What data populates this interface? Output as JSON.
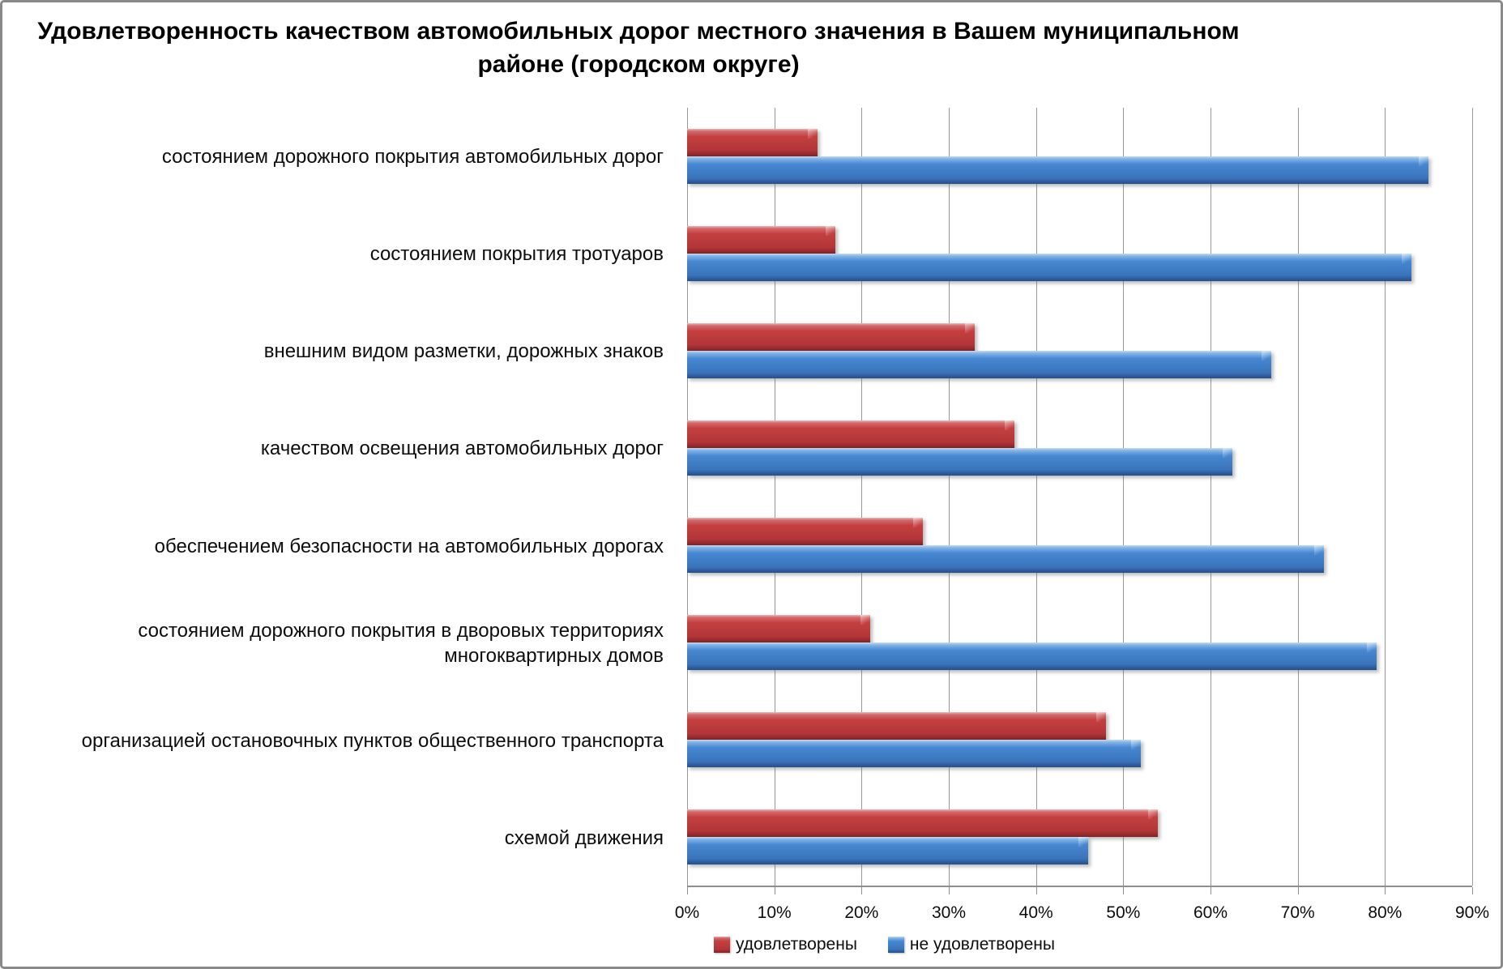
{
  "title": "Удовлетворенность качеством автомобильных дорог местного значения в Вашем муниципальном районе (городском округе)",
  "chart_data": {
    "type": "bar",
    "orientation": "horizontal",
    "title": "Удовлетворенность качеством автомобильных дорог местного значения в Вашем муниципальном районе (городском округе)",
    "categories": [
      "состоянием дорожного покрытия автомобильных дорог",
      "состоянием покрытия тротуаров",
      "внешним видом разметки, дорожных знаков",
      "качеством освещения автомобильных дорог",
      "обеспечением безопасности на автомобильных дорогах",
      "состоянием дорожного покрытия в дворовых территориях многоквартирных домов",
      "организацией остановочных пунктов общественного транспорта",
      "схемой движения"
    ],
    "series": [
      {
        "name": "удовлетворены",
        "color": "#c03a3c",
        "values": [
          15,
          17,
          33,
          37.5,
          27,
          21,
          48,
          54
        ]
      },
      {
        "name": "не удовлетворены",
        "color": "#3d7ec9",
        "values": [
          85,
          83,
          67,
          62.5,
          73,
          79,
          52,
          46
        ]
      }
    ],
    "xlim": [
      0,
      90
    ],
    "x_tick_labels": [
      "0%",
      "10%",
      "20%",
      "30%",
      "40%",
      "50%",
      "60%",
      "70%",
      "80%",
      "90%"
    ],
    "grid": "vertical",
    "legend_position": "bottom"
  }
}
